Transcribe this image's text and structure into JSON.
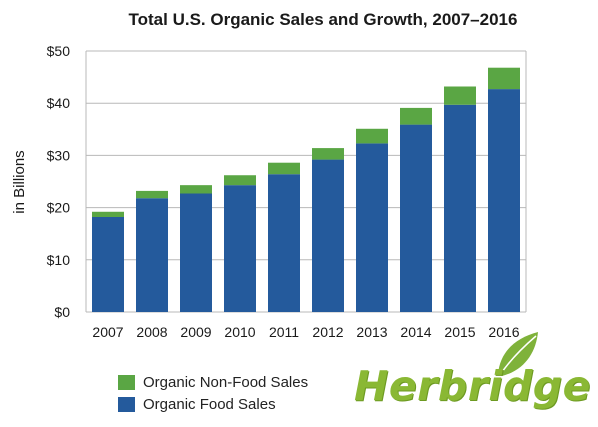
{
  "chart_data": {
    "type": "bar",
    "stacked": true,
    "title": "Total U.S. Organic Sales and Growth, 2007–2016",
    "ylabel": "in Billions",
    "xlabel": "",
    "categories": [
      "2007",
      "2008",
      "2009",
      "2010",
      "2011",
      "2012",
      "2013",
      "2014",
      "2015",
      "2016"
    ],
    "series": [
      {
        "name": "Organic Food Sales",
        "color": "#245a9c",
        "values": [
          18.2,
          21.8,
          22.7,
          24.3,
          26.4,
          29.2,
          32.3,
          35.9,
          39.7,
          42.7
        ]
      },
      {
        "name": "Organic Non-Food Sales",
        "color": "#5aa644",
        "values": [
          1.0,
          1.4,
          1.6,
          1.9,
          2.2,
          2.2,
          2.8,
          3.2,
          3.5,
          4.1
        ]
      }
    ],
    "ylim": [
      0,
      50
    ],
    "yticks": [
      "$0",
      "$10",
      "$20",
      "$30",
      "$40",
      "$50"
    ],
    "grid": true,
    "legend_position": "bottom-left",
    "legend": [
      {
        "label": "Organic Non-Food Sales",
        "color": "#5aa644"
      },
      {
        "label": "Organic Food Sales",
        "color": "#245a9c"
      }
    ]
  },
  "logo": {
    "text": "Herbridge",
    "icon": "leaf-icon",
    "color": "#8ab834",
    "leaf_color": "#7fb23a"
  }
}
